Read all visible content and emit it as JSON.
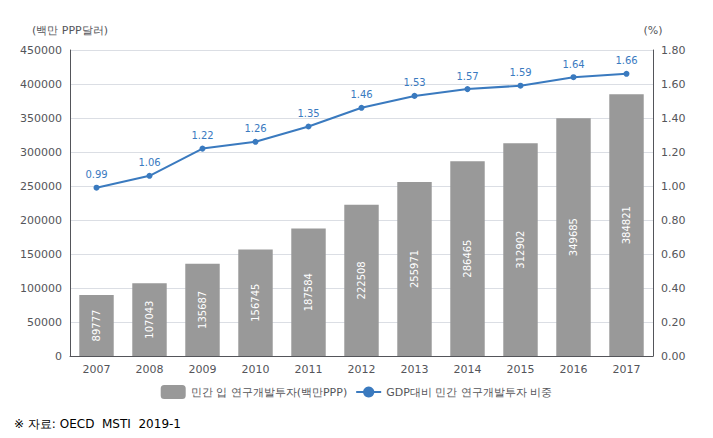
{
  "chart_data": {
    "type": "bar",
    "categories": [
      "2007",
      "2008",
      "2009",
      "2010",
      "2011",
      "2012",
      "2013",
      "2014",
      "2015",
      "2016",
      "2017"
    ],
    "series": [
      {
        "name": "민간 입 연구개발투자(백만PPP)",
        "type": "bar",
        "color": "#999999",
        "values": [
          89777,
          107043,
          135687,
          156745,
          187584,
          222508,
          255971,
          286465,
          312902,
          349685,
          384821
        ]
      },
      {
        "name": "GDP대비 민간 연구개발투자 비중",
        "type": "line",
        "axis": "y2",
        "color": "#3a7abf",
        "marker": "circle",
        "values": [
          0.99,
          1.06,
          1.22,
          1.26,
          1.35,
          1.46,
          1.53,
          1.57,
          1.59,
          1.64,
          1.66
        ]
      }
    ],
    "ylabel": "(백만 PPP달러)",
    "y2label": "(%)",
    "ylim": [
      0,
      450000
    ],
    "yticks": [
      0,
      50000,
      100000,
      150000,
      200000,
      250000,
      300000,
      350000,
      400000,
      450000
    ],
    "y2lim": [
      0,
      1.8
    ],
    "y2ticks": [
      {
        "value": 0,
        "label": "0.00"
      },
      {
        "value": 0.2,
        "label": "0.20"
      },
      {
        "value": 0.4,
        "label": "0.40"
      },
      {
        "value": 0.6,
        "label": "0.60"
      },
      {
        "value": 0.8,
        "label": "0.80"
      },
      {
        "value": 1.0,
        "label": "1.00"
      },
      {
        "value": 1.2,
        "label": "1.20"
      },
      {
        "value": 1.4,
        "label": "1.40"
      },
      {
        "value": 1.6,
        "label": "1.60"
      },
      {
        "value": 1.8,
        "label": "1.80"
      }
    ],
    "annotations": [
      "※ 자료: OECD  MSTI  2019-1"
    ],
    "grid": true,
    "legend": "bottom",
    "data_labels": true
  }
}
